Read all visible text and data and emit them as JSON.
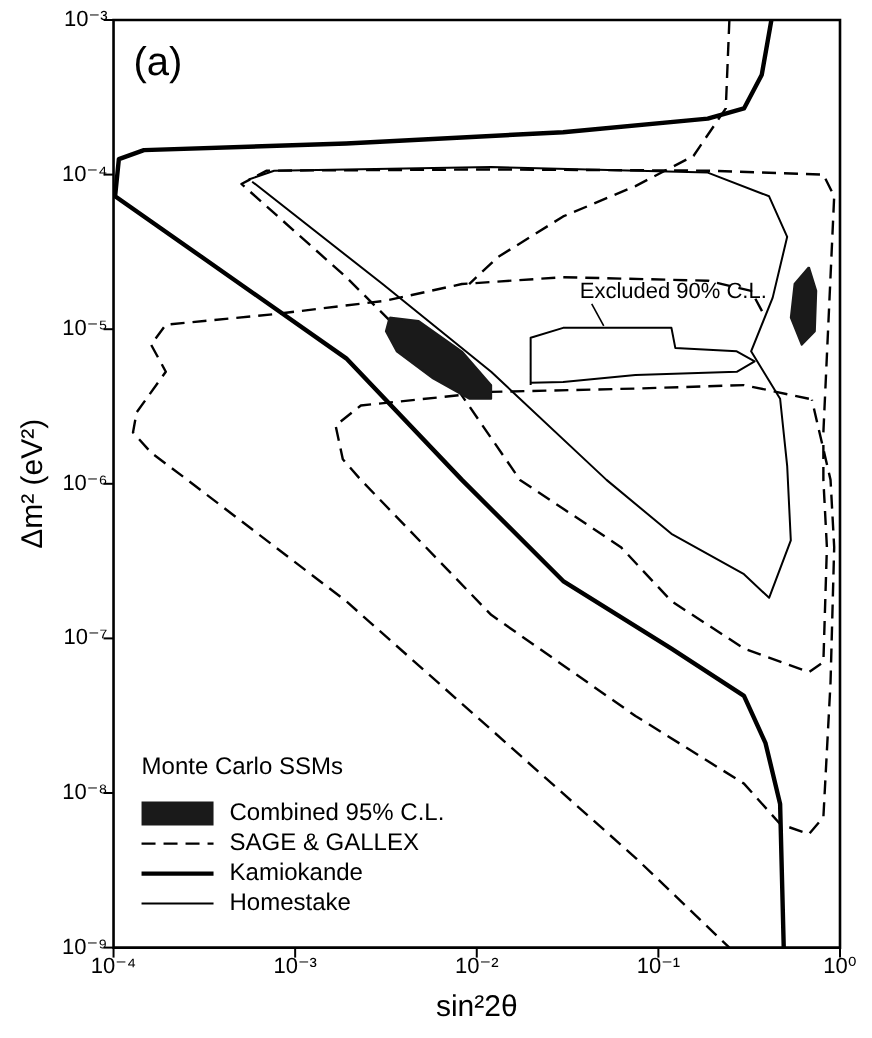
{
  "chart_data": {
    "type": "line",
    "xlabel": "sin²2θ",
    "ylabel": "Δm² (eV²)",
    "legend_title": "Monte Carlo SSMs",
    "annotations": [
      "(a)",
      {
        "text": "Excluded 90% C.L.",
        "x": 0.05,
        "y": 1.02e-05
      }
    ],
    "log": "xy",
    "xlim": [
      0.0001,
      1
    ],
    "ylim": [
      1e-09,
      0.001
    ],
    "xticks": [
      {
        "value": 0.0001,
        "label": "10⁻⁴"
      },
      {
        "value": 0.001,
        "label": "10⁻³"
      },
      {
        "value": 0.01,
        "label": "10⁻²"
      },
      {
        "value": 0.1,
        "label": "10⁻¹"
      },
      {
        "value": 1,
        "label": "10⁰"
      }
    ],
    "yticks": [
      {
        "value": 1e-09,
        "label": "10⁻⁹"
      },
      {
        "value": 1e-08,
        "label": "10⁻⁸"
      },
      {
        "value": 1e-07,
        "label": "10⁻⁷"
      },
      {
        "value": 1e-06,
        "label": "10⁻⁶"
      },
      {
        "value": 1e-05,
        "label": "10⁻⁵"
      },
      {
        "value": 0.0001,
        "label": "10⁻⁴"
      },
      {
        "value": 0.001,
        "label": "10⁻³"
      }
    ],
    "grid": false,
    "legend": "bottom left",
    "series": [
      {
        "name": "SAGE & GALLEX",
        "color": "#000000",
        "line_style": "dashed",
        "x": [
          0.246,
          0.235,
          0.156,
          0.0748,
          0.0299,
          0.0131,
          0.00908
        ],
        "values": [
          0.001,
          0.000268,
          0.000132,
          8.43e-05,
          5.36e-05,
          2.93e-05,
          1.96e-05
        ]
      },
      {
        "color": "#000000",
        "line_style": "dashed",
        "x": [
          0.372,
          0.324,
          0.187,
          0.0299,
          0.00828,
          0.00316,
          0.000765,
          0.000194,
          0.000161,
          0.000194,
          0.000134,
          0.000128,
          0.000161,
          0.000255,
          0.00191,
          0.012,
          0.0748,
          0.246
        ],
        "values": [
          1.31e-05,
          1.77e-05,
          2.06e-05,
          2.17e-05,
          1.96e-05,
          1.53e-05,
          1.25e-05,
          1.07e-05,
          7.94e-06,
          5.31e-06,
          2.9e-06,
          2.15e-06,
          1.59e-06,
          1.06e-06,
          1.74e-07,
          2.57e-08,
          3.81e-09,
          1e-09
        ]
      },
      {
        "color": "#000000",
        "line_style": "dashed",
        "x": [
          0.81,
          0.929,
          0.81,
          0.187,
          0.012,
          0.000698,
          0.000506,
          0.00191,
          0.00756,
          0.0173,
          0.0622,
          0.118,
          0.296,
          0.674,
          0.81,
          0.847,
          0.81,
          0.81
        ],
        "values": [
          2.15e-06,
          7.24e-05,
          0.0001,
          0.000106,
          0.000108,
          0.000106,
          8.7e-05,
          2.17e-05,
          4.35e-06,
          1.06e-06,
          3.89e-07,
          1.74e-07,
          8.6e-08,
          6.05e-08,
          7.03e-08,
          3.89e-07,
          1.06e-06,
          2e-06
        ]
      },
      {
        "color": "#000000",
        "line_style": "dashed",
        "x": [
          0.674,
          0.296,
          0.0748,
          0.012,
          0.0023,
          0.00167,
          0.00183,
          0.0023,
          0.012,
          0.0748,
          0.296,
          0.468,
          0.674,
          0.81,
          0.887,
          0.929,
          0.887,
          0.7
        ],
        "values": [
          3.55e-06,
          4.35e-06,
          4.13e-06,
          3.93e-06,
          3.21e-06,
          2.38e-06,
          1.44e-06,
          1.06e-06,
          1.42e-07,
          3.15e-08,
          1.15e-08,
          6.3e-09,
          5.42e-09,
          6.96e-09,
          5.2e-08,
          3.89e-07,
          1.06e-06,
          3.5e-06
        ]
      },
      {
        "name": "Kamiokande",
        "color": "#000000",
        "line_style": "solid",
        "x": [
          0.419,
          0.371,
          0.296,
          0.187,
          0.0299,
          0.00191,
          0.000147,
          0.000107,
          0.000102,
          0.000306,
          0.00191,
          0.00828,
          0.0299,
          0.118,
          0.296,
          0.389,
          0.468,
          0.49
        ],
        "values": [
          0.001,
          0.000443,
          0.000268,
          0.00023,
          0.000188,
          0.000159,
          0.000144,
          0.000126,
          7.24e-05,
          2.93e-05,
          6.48e-06,
          1.06e-06,
          2.35e-07,
          8.6e-08,
          4.25e-08,
          2.1e-08,
          8.5e-09,
          1e-09
        ]
      },
      {
        "name": "Homestake",
        "color": "#000000",
        "line_style": "solid",
        "x": [
          0.000555,
          0.000766,
          0.012,
          0.187,
          0.407,
          0.512,
          0.426,
          0.324,
          0.468,
          0.512,
          0.536,
          0.407,
          0.296,
          0.118,
          0.0518,
          0.012,
          0.00303,
          0.00058
        ],
        "values": [
          9.3e-05,
          0.000106,
          0.000112,
          0.000103,
          7.24e-05,
          3.96e-05,
          1.6e-05,
          7.2e-06,
          3.55e-06,
          1.3e-06,
          4.3e-07,
          1.83e-07,
          2.6e-07,
          4.75e-07,
          1.06e-06,
          5.3e-06,
          1.96e-05,
          9e-05
        ]
      },
      {
        "color": "#000000",
        "line_style": "solid",
        "x": [
          0.0198,
          0.0198,
          0.0299,
          0.118,
          0.124,
          0.27,
          0.339,
          0.27,
          0.0748,
          0.0299,
          0.0198
        ],
        "values": [
          4.35e-06,
          8.8e-06,
          1.02e-05,
          1.02e-05,
          7.55e-06,
          7.2e-06,
          6.2e-06,
          5.3e-06,
          5.05e-06,
          4.56e-06,
          4.5e-06
        ]
      },
      {
        "name": "Combined 95% C.L.",
        "type": "area",
        "color": "#1a1a1a",
        "x": [
          0.00331,
          0.00479,
          0.00828,
          0.012,
          0.012,
          0.00908,
          0.00574,
          0.00363,
          0.00316,
          0.00331
        ],
        "values": [
          1.19e-05,
          1.13e-05,
          7.18e-06,
          4.35e-06,
          3.55e-06,
          3.55e-06,
          4.8e-06,
          7.18e-06,
          9.7e-06,
          1.19e-05
        ]
      },
      {
        "type": "area",
        "color": "#1a1a1a",
        "x": [
          0.674,
          0.74,
          0.727,
          0.615,
          0.536,
          0.562,
          0.674
        ],
        "values": [
          2.52e-05,
          1.77e-05,
          9.7e-06,
          7.94e-06,
          1.19e-05,
          1.96e-05,
          2.52e-05
        ]
      }
    ]
  }
}
